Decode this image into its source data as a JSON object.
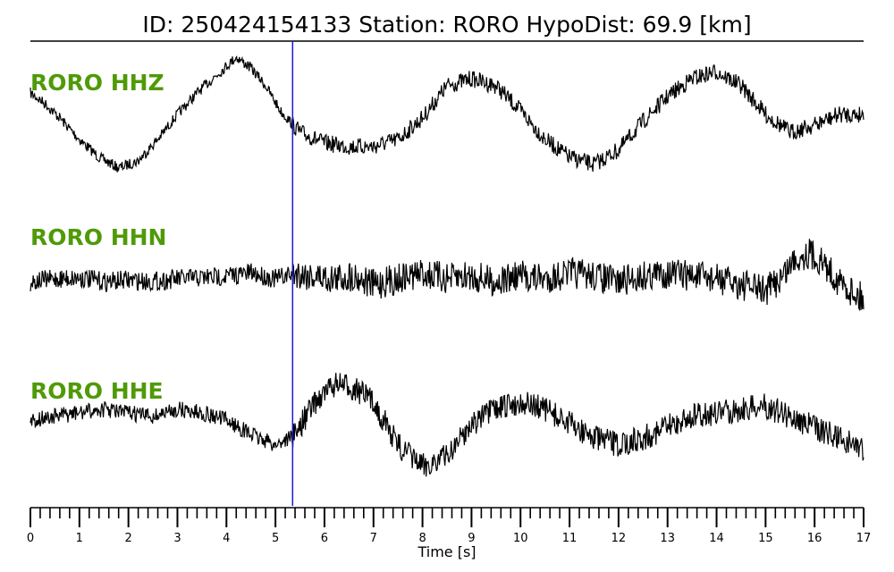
{
  "chart_data": {
    "type": "line",
    "title": "ID: 250424154133   Station: RORO   HypoDist:    69.9 [km]",
    "xlabel": "Time [s]",
    "xlim": [
      0,
      17
    ],
    "x_ticks": [
      "0",
      "1",
      "2",
      "3",
      "4",
      "5",
      "6",
      "7",
      "8",
      "9",
      "10",
      "11",
      "12",
      "13",
      "14",
      "15",
      "16",
      "17"
    ],
    "minor_tick_step": 0.2,
    "pick_time": 5.35,
    "pick_color": "#1a1ad6",
    "label_color": "#4f9a08",
    "trace_color": "#000000",
    "series": [
      {
        "name": "RORO HHZ",
        "x": [
          0,
          0.3,
          0.6,
          1.0,
          1.4,
          1.8,
          2.2,
          2.6,
          3.0,
          3.4,
          3.8,
          4.2,
          4.5,
          4.8,
          5.1,
          5.5,
          6.0,
          6.5,
          7.0,
          7.5,
          8.0,
          8.5,
          9.0,
          9.5,
          10.0,
          10.5,
          11.0,
          11.5,
          12.0,
          12.5,
          13.0,
          13.5,
          14.0,
          14.5,
          15.0,
          15.5,
          16.0,
          16.5,
          17.0
        ],
        "values": [
          0.35,
          0.2,
          0.0,
          -0.3,
          -0.55,
          -0.7,
          -0.6,
          -0.3,
          0.05,
          0.35,
          0.6,
          0.85,
          0.7,
          0.45,
          0.1,
          -0.2,
          -0.35,
          -0.4,
          -0.4,
          -0.3,
          0.0,
          0.45,
          0.55,
          0.45,
          0.1,
          -0.3,
          -0.55,
          -0.65,
          -0.45,
          -0.05,
          0.3,
          0.55,
          0.65,
          0.45,
          0.05,
          -0.2,
          -0.1,
          0.05,
          0.05
        ]
      },
      {
        "name": "RORO HHN",
        "x": [
          0,
          0.5,
          1.0,
          1.5,
          2.0,
          2.5,
          3.0,
          3.5,
          4.0,
          4.5,
          5.0,
          5.4,
          5.8,
          6.2,
          6.6,
          7.0,
          7.5,
          8.0,
          8.5,
          9.0,
          9.5,
          10.0,
          10.5,
          11.0,
          11.5,
          12.0,
          12.5,
          13.0,
          13.5,
          14.0,
          14.5,
          15.0,
          15.3,
          15.6,
          15.9,
          16.2,
          16.5,
          17.0
        ],
        "values": [
          -0.05,
          0.0,
          0.02,
          -0.05,
          -0.02,
          -0.05,
          0.0,
          0.02,
          0.05,
          0.1,
          0.0,
          0.1,
          0.05,
          0.0,
          0.05,
          -0.1,
          0.0,
          0.1,
          0.0,
          0.05,
          -0.05,
          0.05,
          0.0,
          0.1,
          0.05,
          -0.05,
          0.05,
          0.1,
          0.05,
          0.0,
          -0.1,
          -0.2,
          0.0,
          0.35,
          0.45,
          0.25,
          -0.05,
          -0.35
        ]
      },
      {
        "name": "RORO HHE",
        "x": [
          0,
          0.5,
          1.0,
          1.5,
          2.0,
          2.5,
          3.0,
          3.5,
          4.0,
          4.5,
          5.0,
          5.4,
          5.8,
          6.2,
          6.6,
          7.0,
          7.5,
          8.0,
          8.5,
          9.0,
          9.5,
          10.0,
          10.5,
          11.0,
          11.5,
          12.0,
          12.5,
          13.0,
          13.5,
          14.0,
          14.5,
          15.0,
          15.5,
          16.0,
          16.5,
          17.0
        ],
        "values": [
          0.05,
          0.1,
          0.15,
          0.2,
          0.15,
          0.1,
          0.2,
          0.15,
          0.05,
          -0.15,
          -0.3,
          -0.15,
          0.3,
          0.55,
          0.5,
          0.3,
          -0.3,
          -0.6,
          -0.45,
          0.0,
          0.2,
          0.3,
          0.2,
          0.0,
          -0.2,
          -0.3,
          -0.2,
          -0.05,
          0.1,
          0.15,
          0.2,
          0.25,
          0.1,
          -0.05,
          -0.2,
          -0.35
        ]
      }
    ]
  }
}
